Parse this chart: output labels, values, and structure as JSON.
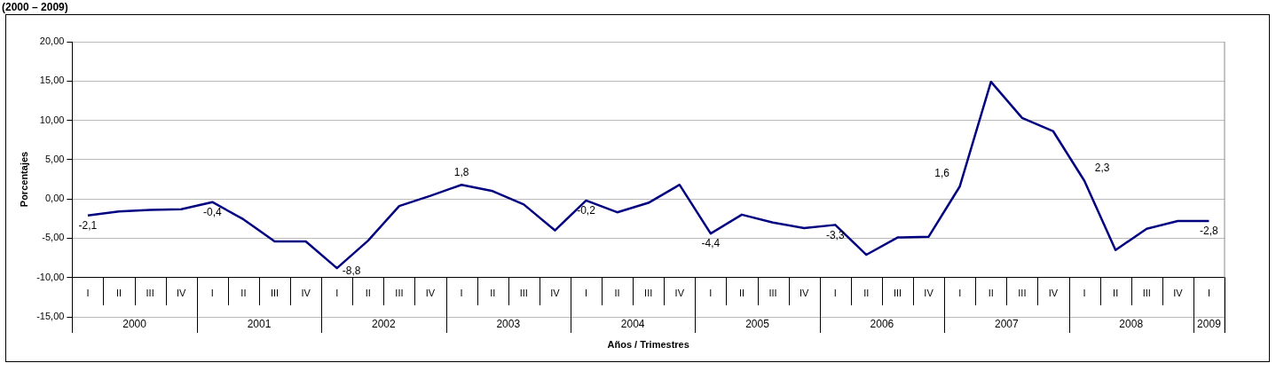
{
  "chart_data": {
    "type": "line",
    "title": "(2000 – 2009)",
    "xlabel": "Años / Trimestres",
    "ylabel": "Porcentajes",
    "categories": [
      "I",
      "II",
      "III",
      "IV",
      "I",
      "II",
      "III",
      "IV",
      "I",
      "II",
      "III",
      "IV",
      "I",
      "II",
      "III",
      "IV",
      "I",
      "II",
      "III",
      "IV",
      "I",
      "II",
      "III",
      "IV",
      "I",
      "II",
      "III",
      "IV",
      "I",
      "II",
      "III",
      "IV",
      "I",
      "II",
      "III",
      "IV",
      "I"
    ],
    "series": [
      {
        "color": "#000080",
        "values": [
          -2.1,
          -1.6,
          -1.4,
          -1.3,
          -0.4,
          -2.6,
          -5.4,
          -5.4,
          -8.8,
          -5.3,
          -0.9,
          0.4,
          1.8,
          1.0,
          -0.7,
          -4.0,
          -0.2,
          -1.7,
          -0.5,
          1.8,
          -4.4,
          -2.0,
          -3.0,
          -3.7,
          -3.3,
          -7.1,
          -4.9,
          -4.8,
          1.6,
          14.9,
          10.3,
          8.6,
          2.3,
          -6.5,
          -3.8,
          -2.8,
          -2.8
        ],
        "value_labels": [
          "-2,1",
          null,
          null,
          null,
          "-0,4",
          null,
          null,
          null,
          "-8,8",
          null,
          null,
          null,
          "1,8",
          null,
          null,
          null,
          "-0,2",
          null,
          null,
          null,
          "-4,4",
          null,
          null,
          null,
          "-3,3",
          null,
          null,
          null,
          "1,6",
          null,
          null,
          null,
          "2,3",
          null,
          null,
          null,
          "-2,8"
        ]
      }
    ],
    "ylim": [
      -15,
      20
    ],
    "yticks": [
      {
        "value": -15,
        "label": "-15,00"
      },
      {
        "value": -10,
        "label": "-10,00"
      },
      {
        "value": -5,
        "label": "-5,00"
      },
      {
        "value": 0,
        "label": "0,00"
      },
      {
        "value": 5,
        "label": "5,00"
      },
      {
        "value": 10,
        "label": "10,00"
      },
      {
        "value": 15,
        "label": "15,00"
      },
      {
        "value": 20,
        "label": "20,00"
      }
    ],
    "grid": "y",
    "legend": false,
    "marker": "none",
    "line_style": "solid",
    "annotations": [
      "2000",
      "2001",
      "2002",
      "2003",
      "2004",
      "2005",
      "2006",
      "2007",
      "2008",
      "2009"
    ]
  }
}
